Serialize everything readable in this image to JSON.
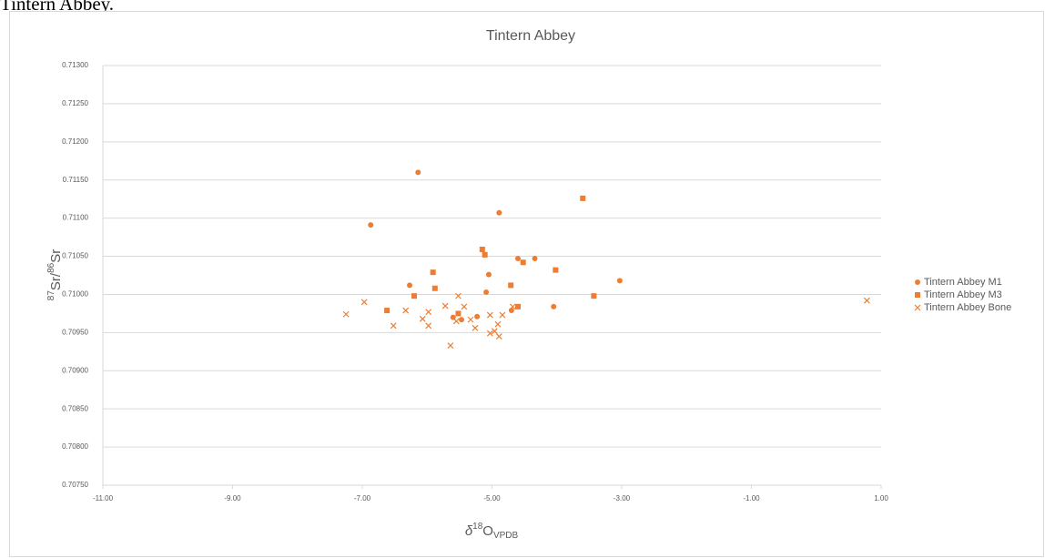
{
  "caption": "Tintern Abbey.",
  "chart_data": {
    "type": "scatter",
    "title": "Tintern Abbey",
    "x_label": [
      "δ",
      "18",
      "O",
      "VPDB"
    ],
    "y_label": [
      "87",
      "Sr/",
      "86",
      "Sr"
    ],
    "xlim": [
      -11,
      1
    ],
    "ylim": [
      0.7075,
      0.713
    ],
    "xticks": [
      {
        "value": -11,
        "label": "-11.00"
      },
      {
        "value": -9,
        "label": "-9.00"
      },
      {
        "value": -7,
        "label": "-7.00"
      },
      {
        "value": -5,
        "label": "-5.00"
      },
      {
        "value": -3,
        "label": "-3.00"
      },
      {
        "value": -1,
        "label": "-1.00"
      },
      {
        "value": 1,
        "label": "1.00"
      }
    ],
    "yticks": [
      {
        "value": 0.7075,
        "label": "0.70750"
      },
      {
        "value": 0.708,
        "label": "0.70800"
      },
      {
        "value": 0.7085,
        "label": "0.70850"
      },
      {
        "value": 0.709,
        "label": "0.70900"
      },
      {
        "value": 0.7095,
        "label": "0.70950"
      },
      {
        "value": 0.71,
        "label": "0.71000"
      },
      {
        "value": 0.7105,
        "label": "0.71050"
      },
      {
        "value": 0.711,
        "label": "0.71100"
      },
      {
        "value": 0.7115,
        "label": "0.71150"
      },
      {
        "value": 0.712,
        "label": "0.71200"
      },
      {
        "value": 0.7125,
        "label": "0.71250"
      },
      {
        "value": 0.713,
        "label": "0.71300"
      }
    ],
    "grid": true,
    "legend": "right",
    "series": [
      {
        "name": "Tintern Abbey M1",
        "color": "#ed7d31",
        "marker": "circle",
        "x": [
          -6.14,
          -6.87,
          -4.89,
          -4.6,
          -4.34,
          -6.27,
          -5.05,
          -5.09,
          -3.03,
          -4.05,
          -4.7,
          -5.23,
          -5.6,
          -5.47
        ],
        "values": [
          0.7116,
          0.71091,
          0.71107,
          0.71047,
          0.71047,
          0.71012,
          0.71026,
          0.71003,
          0.71018,
          0.70984,
          0.70979,
          0.70971,
          0.7097,
          0.70967
        ]
      },
      {
        "name": "Tintern Abbey M3",
        "color": "#ed7d31",
        "marker": "square",
        "x": [
          -3.6,
          -5.15,
          -5.11,
          -4.52,
          -5.91,
          -4.02,
          -5.88,
          -6.2,
          -4.71,
          -3.43,
          -6.62,
          -4.6,
          -5.52
        ],
        "values": [
          0.71126,
          0.71059,
          0.71052,
          0.71042,
          0.71029,
          0.71032,
          0.71008,
          0.70998,
          0.71012,
          0.70998,
          0.70979,
          0.70984,
          0.70975
        ]
      },
      {
        "name": "Tintern Abbey Bone",
        "color": "#ed7d31",
        "marker": "cross",
        "x": [
          -7.25,
          -6.97,
          -6.52,
          -6.33,
          -6.07,
          -5.98,
          -5.98,
          -5.72,
          -5.52,
          -5.55,
          -5.43,
          -5.33,
          -5.64,
          -5.26,
          -5.03,
          -5.03,
          -4.96,
          -4.91,
          -4.84,
          -4.89,
          -4.68,
          0.78
        ],
        "values": [
          0.70974,
          0.7099,
          0.70959,
          0.70979,
          0.70968,
          0.70977,
          0.70959,
          0.70985,
          0.70998,
          0.70965,
          0.70984,
          0.70967,
          0.70933,
          0.70956,
          0.70973,
          0.70949,
          0.70952,
          0.70961,
          0.70973,
          0.70945,
          0.70984,
          0.70992
        ]
      }
    ]
  }
}
